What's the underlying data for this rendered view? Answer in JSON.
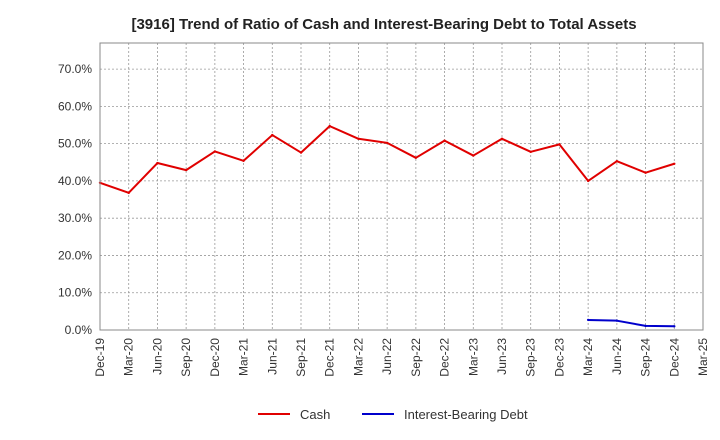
{
  "chart_data": {
    "type": "line",
    "title": "[3916]  Trend of Ratio of Cash and Interest-Bearing Debt to Total Assets",
    "xlabel": "",
    "ylabel": "",
    "x": [
      "Dec-19",
      "Mar-20",
      "Jun-20",
      "Sep-20",
      "Dec-20",
      "Mar-21",
      "Jun-21",
      "Sep-21",
      "Dec-21",
      "Mar-22",
      "Jun-22",
      "Sep-22",
      "Dec-22",
      "Mar-23",
      "Jun-23",
      "Sep-23",
      "Dec-23",
      "Mar-24",
      "Jun-24",
      "Sep-24",
      "Dec-24",
      "Mar-25"
    ],
    "ylim": [
      0,
      77
    ],
    "yticks": [
      0,
      10,
      20,
      30,
      40,
      50,
      60,
      70
    ],
    "ytick_labels": [
      "0.0%",
      "10.0%",
      "20.0%",
      "30.0%",
      "40.0%",
      "50.0%",
      "60.0%",
      "70.0%"
    ],
    "grid": true,
    "legend_position": "bottom-center",
    "series": [
      {
        "name": "Cash",
        "color": "#e00000",
        "values": [
          39.5,
          36.8,
          44.8,
          42.9,
          47.9,
          45.4,
          52.3,
          47.6,
          54.7,
          51.3,
          50.2,
          46.2,
          50.8,
          46.8,
          51.3,
          47.8,
          49.8,
          40.0,
          45.3,
          42.2,
          44.6,
          null
        ]
      },
      {
        "name": "Interest-Bearing Debt",
        "color": "#0000cc",
        "values": [
          null,
          null,
          null,
          null,
          null,
          null,
          null,
          null,
          null,
          null,
          null,
          null,
          null,
          null,
          null,
          null,
          null,
          2.7,
          2.5,
          1.1,
          1.0,
          null
        ]
      }
    ]
  }
}
